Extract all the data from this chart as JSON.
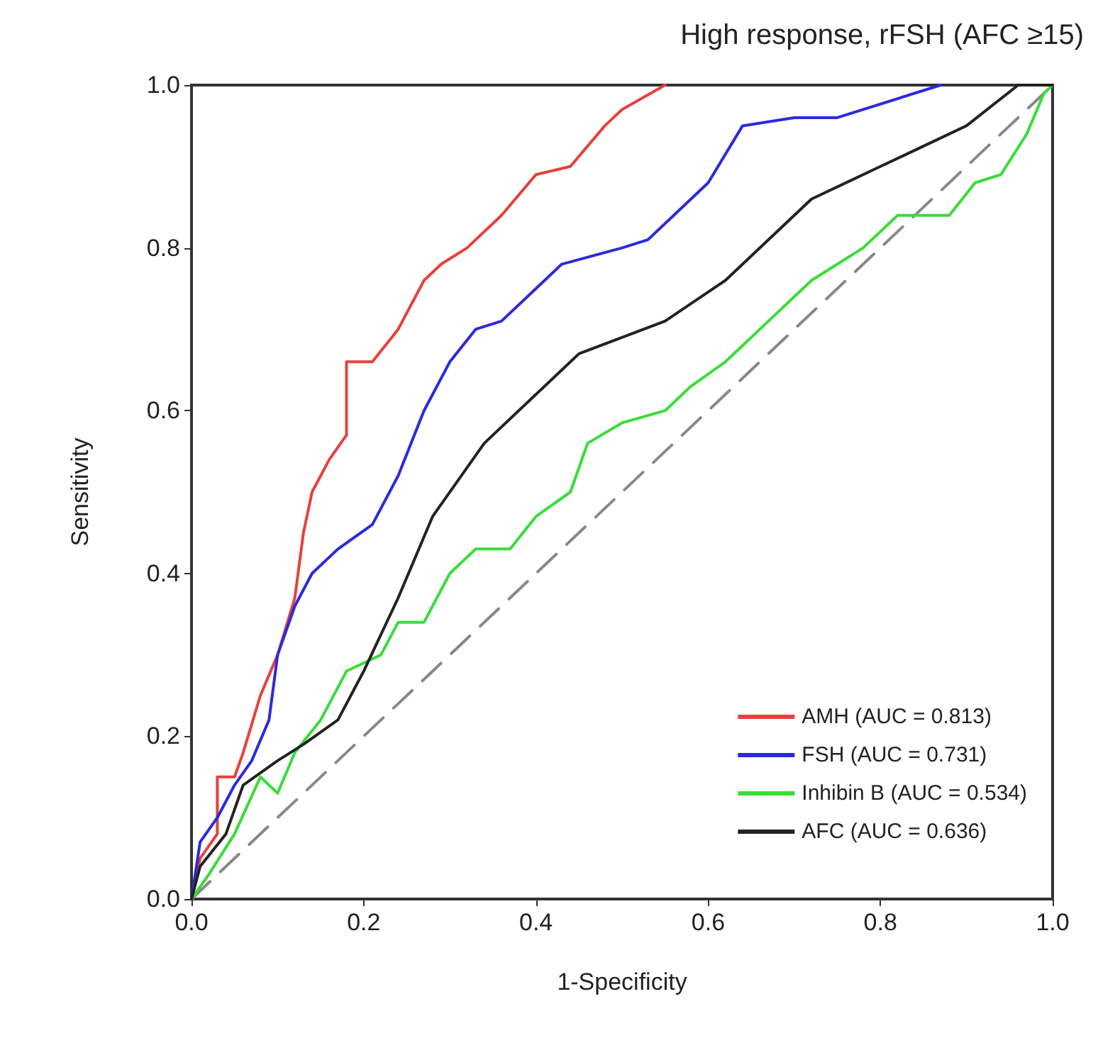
{
  "chart_data": {
    "type": "line",
    "title": "High response, rFSH (AFC ≥15)",
    "xlabel": "1-Specificity",
    "ylabel": "Sensitivity",
    "xlim": [
      0,
      1
    ],
    "ylim": [
      0,
      1
    ],
    "xticks": [
      {
        "value": 0,
        "label": "0.0"
      },
      {
        "value": 0.2,
        "label": "0.2"
      },
      {
        "value": 0.4,
        "label": "0.4"
      },
      {
        "value": 0.6,
        "label": "0.6"
      },
      {
        "value": 0.8,
        "label": "0.8"
      },
      {
        "value": 1,
        "label": "1.0"
      }
    ],
    "yticks": [
      {
        "value": 0,
        "label": "0.0"
      },
      {
        "value": 0.2,
        "label": "0.2"
      },
      {
        "value": 0.4,
        "label": "0.4"
      },
      {
        "value": 0.6,
        "label": "0.6"
      },
      {
        "value": 0.8,
        "label": "0.8"
      },
      {
        "value": 1,
        "label": "1.0"
      }
    ],
    "grid": false,
    "legend": "bottom right",
    "marker": "none",
    "line_style": "solid",
    "series": [
      {
        "type": "line",
        "line_style": "dashed",
        "color": "#888888",
        "x": [
          0,
          1
        ],
        "values": [
          0,
          1
        ]
      },
      {
        "name": "AMH (AUC = 0.813)",
        "color": "#e8403a",
        "x": [
          0,
          0.01,
          0.03,
          0.03,
          0.05,
          0.06,
          0.08,
          0.1,
          0.12,
          0.13,
          0.14,
          0.16,
          0.18,
          0.18,
          0.21,
          0.24,
          0.27,
          0.29,
          0.32,
          0.36,
          0.4,
          0.44,
          0.48,
          0.5,
          0.55
        ],
        "values": [
          0,
          0.05,
          0.08,
          0.15,
          0.15,
          0.18,
          0.25,
          0.3,
          0.37,
          0.45,
          0.5,
          0.54,
          0.57,
          0.66,
          0.66,
          0.7,
          0.76,
          0.78,
          0.8,
          0.84,
          0.89,
          0.9,
          0.95,
          0.97,
          1
        ]
      },
      {
        "name": "FSH (AUC = 0.731)",
        "color": "#2a2ae0",
        "x": [
          0,
          0.01,
          0.03,
          0.05,
          0.07,
          0.09,
          0.1,
          0.12,
          0.14,
          0.17,
          0.21,
          0.24,
          0.27,
          0.3,
          0.33,
          0.36,
          0.4,
          0.43,
          0.5,
          0.53,
          0.56,
          0.6,
          0.64,
          0.7,
          0.75,
          0.87
        ],
        "values": [
          0,
          0.07,
          0.1,
          0.14,
          0.17,
          0.22,
          0.3,
          0.36,
          0.4,
          0.43,
          0.46,
          0.52,
          0.6,
          0.66,
          0.7,
          0.71,
          0.75,
          0.78,
          0.8,
          0.81,
          0.84,
          0.88,
          0.95,
          0.96,
          0.96,
          1
        ]
      },
      {
        "name": "Inhibin B (AUC = 0.534)",
        "color": "#3adc3a",
        "x": [
          0,
          0.02,
          0.05,
          0.08,
          0.1,
          0.12,
          0.15,
          0.18,
          0.22,
          0.24,
          0.27,
          0.3,
          0.33,
          0.37,
          0.4,
          0.44,
          0.46,
          0.5,
          0.55,
          0.58,
          0.62,
          0.67,
          0.72,
          0.78,
          0.82,
          0.88,
          0.91,
          0.94,
          0.97,
          0.99,
          1
        ],
        "values": [
          0,
          0.03,
          0.08,
          0.15,
          0.13,
          0.18,
          0.22,
          0.28,
          0.3,
          0.34,
          0.34,
          0.4,
          0.43,
          0.43,
          0.47,
          0.5,
          0.56,
          0.585,
          0.6,
          0.63,
          0.66,
          0.71,
          0.76,
          0.8,
          0.84,
          0.84,
          0.88,
          0.89,
          0.94,
          0.99,
          1
        ]
      },
      {
        "name": "AFC (AUC = 0.636)",
        "color": "#222222",
        "x": [
          0,
          0.01,
          0.04,
          0.06,
          0.1,
          0.13,
          0.17,
          0.2,
          0.24,
          0.28,
          0.34,
          0.4,
          0.45,
          0.5,
          0.55,
          0.62,
          0.72,
          0.8,
          0.9,
          0.96,
          1
        ],
        "values": [
          0,
          0.04,
          0.08,
          0.14,
          0.17,
          0.19,
          0.22,
          0.28,
          0.37,
          0.47,
          0.56,
          0.62,
          0.67,
          0.69,
          0.71,
          0.76,
          0.86,
          0.9,
          0.95,
          1,
          1
        ]
      }
    ]
  }
}
